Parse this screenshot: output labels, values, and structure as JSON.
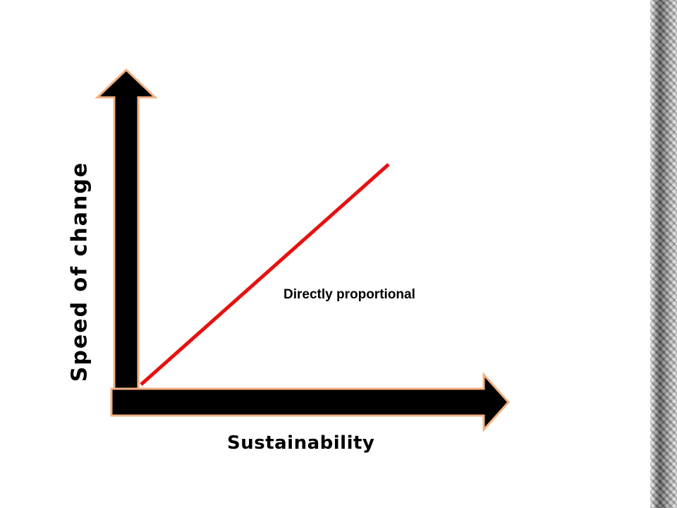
{
  "diagram": {
    "y_axis_label": "Speed of change",
    "x_axis_label": "Sustainability",
    "relation_label": "Directly proportional",
    "colors": {
      "arrow_fill": "#000000",
      "arrow_outline": "#f4b183",
      "trend_line": "#e81010",
      "background": "#ffffff"
    },
    "icons": {
      "y_axis_arrow": "up-arrow",
      "x_axis_arrow": "right-arrow"
    }
  }
}
